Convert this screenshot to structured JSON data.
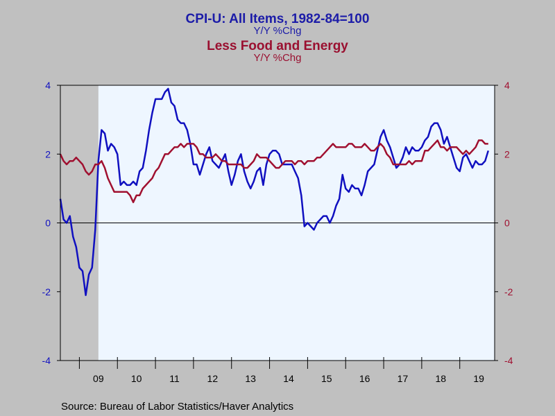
{
  "chart_data": {
    "type": "line",
    "title": "CPI-U: All Items, 1982-84=100",
    "subtitle": "Y/Y %Chg",
    "title2": "Less Food and Energy",
    "subtitle2": "Y/Y %Chg",
    "source": "Source:  Bureau of Labor Statistics/Haver Analytics",
    "ylim": [
      -4,
      4
    ],
    "yticks": [
      -4,
      -2,
      0,
      2,
      4
    ],
    "xlim": [
      2008.5,
      2019.917
    ],
    "xticks": [
      {
        "label": "09",
        "x": 2009.5
      },
      {
        "label": "10",
        "x": 2010.5
      },
      {
        "label": "11",
        "x": 2011.5
      },
      {
        "label": "12",
        "x": 2012.5
      },
      {
        "label": "13",
        "x": 2013.5
      },
      {
        "label": "14",
        "x": 2014.5
      },
      {
        "label": "15",
        "x": 2015.5
      },
      {
        "label": "16",
        "x": 2016.5
      },
      {
        "label": "17",
        "x": 2017.5
      },
      {
        "label": "18",
        "x": 2018.5
      },
      {
        "label": "19",
        "x": 2019.5
      }
    ],
    "recession": [
      2008.5,
      2009.5
    ],
    "colors": {
      "all_items": "#1010c0",
      "core": "#a01030",
      "plot_bg": "#eef6ff",
      "recession": "#c4c4c4"
    },
    "series": [
      {
        "key": "all_items",
        "start": 2008.5,
        "values": [
          0.7,
          0.1,
          0.0,
          0.2,
          -0.4,
          -0.7,
          -1.3,
          -1.4,
          -2.1,
          -1.5,
          -1.3,
          -0.2,
          1.8,
          2.7,
          2.6,
          2.1,
          2.3,
          2.2,
          2.0,
          1.1,
          1.2,
          1.1,
          1.1,
          1.2,
          1.1,
          1.5,
          1.6,
          2.1,
          2.7,
          3.2,
          3.6,
          3.6,
          3.6,
          3.8,
          3.9,
          3.5,
          3.4,
          3.0,
          2.9,
          2.9,
          2.7,
          2.3,
          1.7,
          1.7,
          1.4,
          1.7,
          2.0,
          2.2,
          1.8,
          1.7,
          1.6,
          1.8,
          2.0,
          1.5,
          1.1,
          1.4,
          1.8,
          2.0,
          1.5,
          1.2,
          1.0,
          1.2,
          1.5,
          1.6,
          1.1,
          1.7,
          2.0,
          2.1,
          2.1,
          2.0,
          1.7,
          1.7,
          1.7,
          1.7,
          1.5,
          1.3,
          0.8,
          -0.1,
          0.0,
          -0.1,
          -0.2,
          0.0,
          0.1,
          0.2,
          0.2,
          0.0,
          0.2,
          0.5,
          0.7,
          1.4,
          1.0,
          0.9,
          1.1,
          1.0,
          1.0,
          0.8,
          1.1,
          1.5,
          1.6,
          1.7,
          2.1,
          2.5,
          2.7,
          2.4,
          2.2,
          1.9,
          1.6,
          1.7,
          1.9,
          2.2,
          2.0,
          2.2,
          2.1,
          2.1,
          2.2,
          2.4,
          2.5,
          2.8,
          2.9,
          2.9,
          2.7,
          2.3,
          2.5,
          2.2,
          1.9,
          1.6,
          1.5,
          1.9,
          2.0,
          1.8,
          1.6,
          1.8,
          1.7,
          1.7,
          1.8,
          2.1
        ]
      },
      {
        "key": "core",
        "start": 2008.5,
        "values": [
          2.0,
          1.8,
          1.7,
          1.8,
          1.8,
          1.9,
          1.8,
          1.7,
          1.5,
          1.4,
          1.5,
          1.7,
          1.7,
          1.8,
          1.6,
          1.3,
          1.1,
          0.9,
          0.9,
          0.9,
          0.9,
          0.9,
          0.8,
          0.6,
          0.8,
          0.8,
          1.0,
          1.1,
          1.2,
          1.3,
          1.5,
          1.6,
          1.8,
          2.0,
          2.0,
          2.1,
          2.2,
          2.2,
          2.3,
          2.2,
          2.3,
          2.3,
          2.3,
          2.2,
          2.0,
          2.0,
          1.9,
          1.9,
          1.9,
          2.0,
          1.9,
          1.8,
          1.8,
          1.7,
          1.7,
          1.7,
          1.7,
          1.7,
          1.6,
          1.6,
          1.7,
          1.8,
          2.0,
          1.9,
          1.9,
          1.9,
          1.8,
          1.7,
          1.6,
          1.6,
          1.7,
          1.8,
          1.8,
          1.8,
          1.7,
          1.8,
          1.8,
          1.7,
          1.8,
          1.8,
          1.8,
          1.9,
          1.9,
          2.0,
          2.1,
          2.2,
          2.3,
          2.2,
          2.2,
          2.2,
          2.2,
          2.3,
          2.3,
          2.2,
          2.2,
          2.2,
          2.3,
          2.2,
          2.1,
          2.1,
          2.2,
          2.3,
          2.2,
          2.0,
          1.9,
          1.7,
          1.7,
          1.7,
          1.7,
          1.7,
          1.8,
          1.7,
          1.8,
          1.8,
          1.8,
          2.1,
          2.1,
          2.2,
          2.3,
          2.4,
          2.2,
          2.2,
          2.1,
          2.2,
          2.2,
          2.2,
          2.1,
          2.0,
          2.1,
          2.0,
          2.1,
          2.2,
          2.4,
          2.4,
          2.3,
          2.3
        ]
      }
    ]
  }
}
